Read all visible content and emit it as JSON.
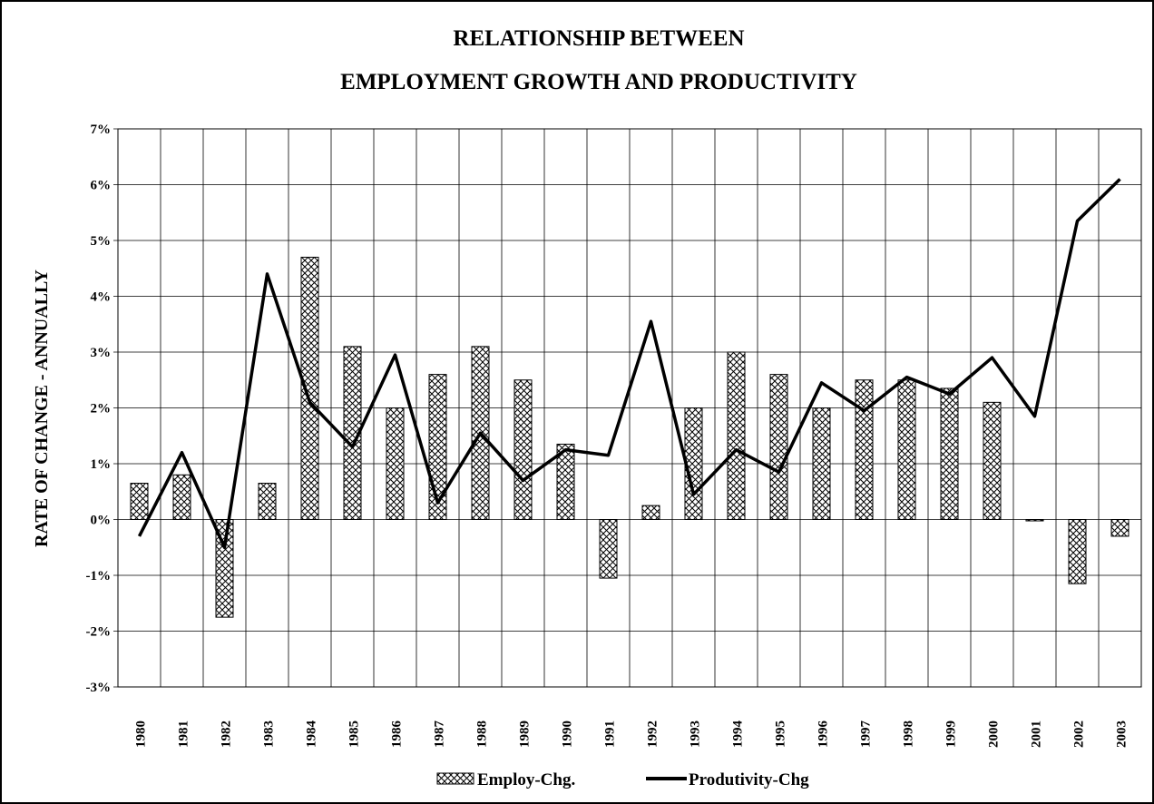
{
  "chart_data": {
    "type": "bar-line",
    "title": [
      "RELATIONSHIP BETWEEN",
      "EMPLOYMENT GROWTH AND PRODUCTIVITY"
    ],
    "ylabel": "RATE OF CHANGE - ANNUALLY",
    "categories": [
      "1980",
      "1981",
      "1982",
      "1983",
      "1984",
      "1985",
      "1986",
      "1987",
      "1988",
      "1989",
      "1990",
      "1991",
      "1992",
      "1993",
      "1994",
      "1995",
      "1996",
      "1997",
      "1998",
      "1999",
      "2000",
      "2001",
      "2002",
      "2003"
    ],
    "series": [
      {
        "name": "Employ-Chg.",
        "type": "bar",
        "color": "#000000",
        "values": [
          0.65,
          0.8,
          -1.75,
          0.65,
          4.7,
          3.1,
          2.0,
          2.6,
          3.1,
          2.5,
          1.35,
          -1.05,
          0.25,
          2.0,
          3.0,
          2.6,
          2.0,
          2.5,
          2.5,
          2.35,
          2.1,
          0.0,
          -1.15,
          -0.3
        ]
      },
      {
        "name": "Produtivity-Chg",
        "type": "line",
        "color": "#000000",
        "values": [
          -0.3,
          1.2,
          -0.5,
          4.4,
          2.1,
          1.3,
          2.95,
          0.3,
          1.55,
          0.7,
          1.25,
          1.15,
          3.55,
          0.45,
          1.25,
          0.85,
          2.45,
          1.95,
          2.55,
          2.25,
          2.9,
          1.85,
          5.35,
          6.1
        ]
      }
    ],
    "ylim": [
      -3,
      7
    ],
    "yticks": [
      {
        "value": -3,
        "label": "-3%"
      },
      {
        "value": -2,
        "label": "-2%"
      },
      {
        "value": -1,
        "label": "-1%"
      },
      {
        "value": 0,
        "label": "0%"
      },
      {
        "value": 1,
        "label": "1%"
      },
      {
        "value": 2,
        "label": "2%"
      },
      {
        "value": 3,
        "label": "3%"
      },
      {
        "value": 4,
        "label": "4%"
      },
      {
        "value": 5,
        "label": "5%"
      },
      {
        "value": 6,
        "label": "6%"
      },
      {
        "value": 7,
        "label": "7%"
      }
    ],
    "grid": true,
    "legend": "bottom"
  }
}
